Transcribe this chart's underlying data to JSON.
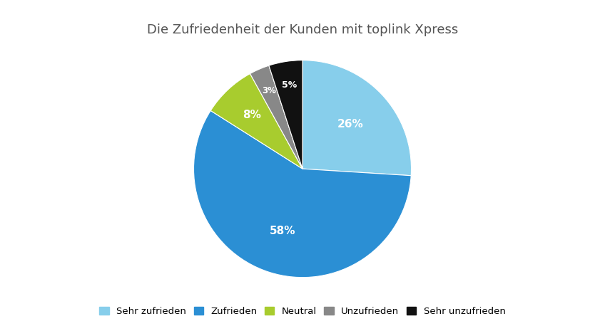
{
  "title": "Die Zufriedenheit der Kunden mit toplink Xpress",
  "labels": [
    "Sehr zufrieden",
    "Zufrieden",
    "Neutral",
    "Unzufrieden",
    "Sehr unzufrieden"
  ],
  "values": [
    26,
    58,
    8,
    3,
    5
  ],
  "colors": [
    "#87CEEB",
    "#2B8FD4",
    "#A8CC2E",
    "#888888",
    "#111111"
  ],
  "pct_labels": [
    "26%",
    "58%",
    "8%",
    "3%",
    "5%"
  ],
  "startangle": 90,
  "background_color": "#FFFFFF",
  "title_fontsize": 13,
  "label_fontsize": 11,
  "legend_fontsize": 9.5
}
